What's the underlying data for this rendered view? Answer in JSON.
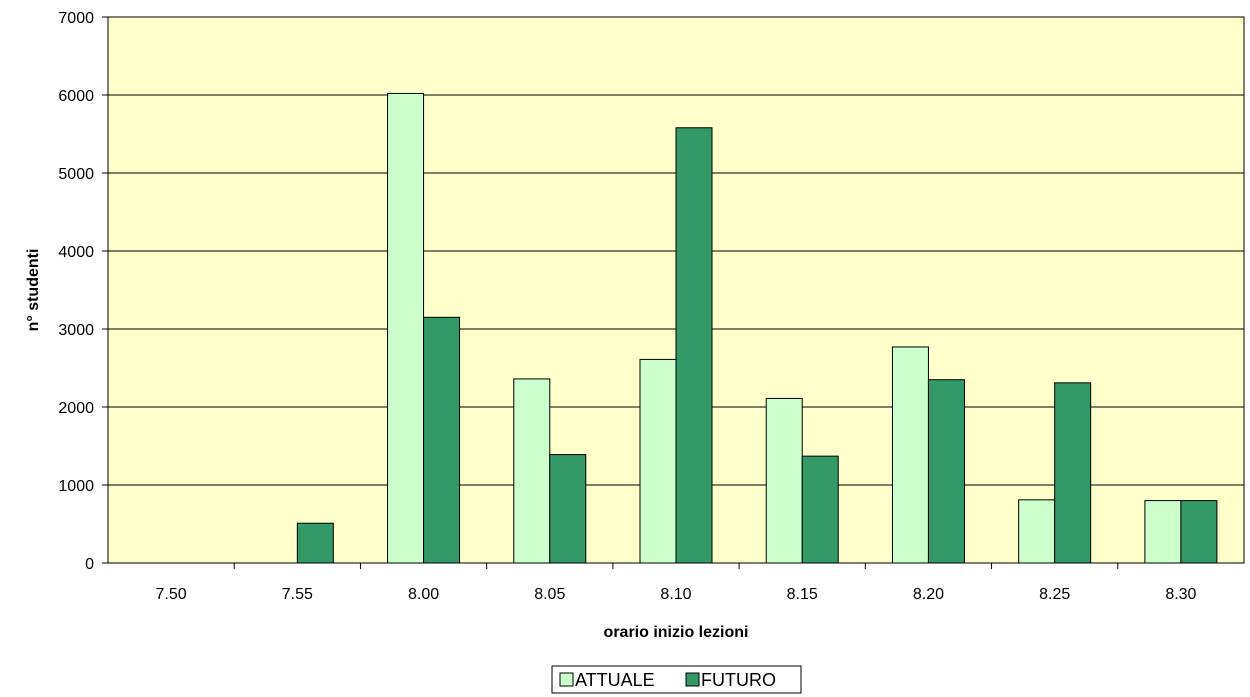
{
  "chart_data": {
    "type": "bar",
    "title": "",
    "xlabel": "orario inizio lezioni",
    "ylabel": "n° studenti",
    "categories": [
      "7.50",
      "7.55",
      "8.00",
      "8.05",
      "8.10",
      "8.15",
      "8.20",
      "8.25",
      "8.30"
    ],
    "series": [
      {
        "name": "ATTUALE",
        "values": [
          0,
          0,
          6020,
          2360,
          2610,
          2110,
          2770,
          810,
          800
        ]
      },
      {
        "name": "FUTURO",
        "values": [
          0,
          510,
          3150,
          1390,
          5580,
          1370,
          2350,
          2310,
          800
        ]
      }
    ],
    "ylim": [
      0,
      7000
    ],
    "yticks": [
      0,
      1000,
      2000,
      3000,
      4000,
      5000,
      6000,
      7000
    ],
    "grid": true,
    "legend_position": "bottom-center"
  },
  "colors": {
    "plot_background": "#ffffcc",
    "attuale": "#ccffcc",
    "futuro": "#339966",
    "gridline": "#000000",
    "bar_outline": "#000000"
  }
}
